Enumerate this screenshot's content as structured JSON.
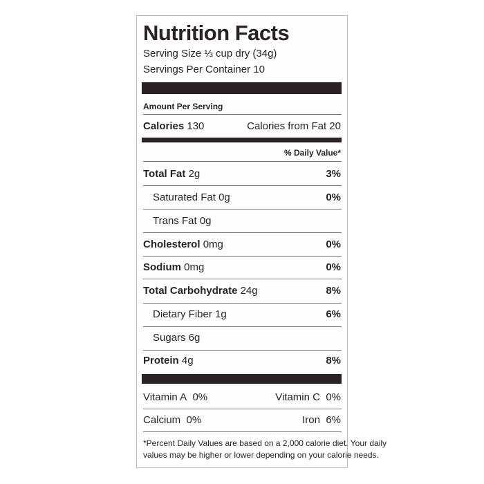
{
  "label": {
    "title": "Nutrition Facts",
    "serving_size": "Serving Size ⅓ cup dry (34g)",
    "servings_per_container": "Servings Per Container 10",
    "amount_per_serving": "Amount Per Serving",
    "calories": {
      "name": "Calories",
      "amount": "130"
    },
    "calories_from_fat": "Calories from Fat 20",
    "daily_value_header": "% Daily Value*",
    "nutrients": [
      {
        "name": "Total Fat",
        "amount": "2g",
        "daily_value": "3%"
      },
      {
        "name": "Saturated Fat",
        "amount": "0g",
        "daily_value": "0%"
      },
      {
        "name": "Trans Fat",
        "amount": "0g"
      },
      {
        "name": "Cholesterol",
        "amount": "0mg",
        "daily_value": "0%"
      },
      {
        "name": "Sodium",
        "amount": "0mg",
        "daily_value": "0%"
      },
      {
        "name": "Total Carbohydrate",
        "amount": "24g",
        "daily_value": "8%"
      },
      {
        "name": "Dietary Fiber",
        "amount": "1g",
        "daily_value": "6%"
      },
      {
        "name": "Sugars",
        "amount": "6g"
      },
      {
        "name": "Protein",
        "amount": "4g",
        "daily_value": "8%"
      }
    ],
    "vitamins": [
      {
        "name": "Vitamin A",
        "daily_value": "0%"
      },
      {
        "name": "Vitamin C",
        "daily_value": "0%"
      },
      {
        "name": "Calcium",
        "daily_value": "0%"
      },
      {
        "name": "Iron",
        "daily_value": "6%"
      }
    ],
    "footnote": [
      "*Percent Daily Values are based on a 2,000 calorie diet. Your daily",
      "values may be higher or lower depending on your calorie needs."
    ]
  }
}
